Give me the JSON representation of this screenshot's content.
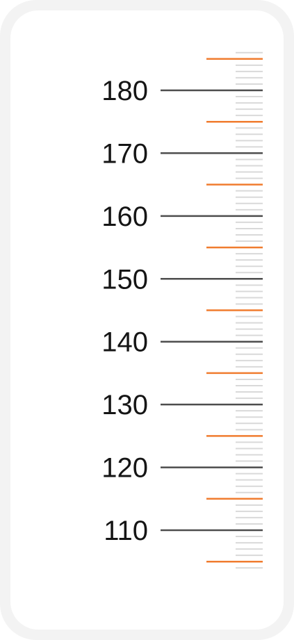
{
  "ruler": {
    "major_values": [
      180,
      170,
      160,
      150,
      140,
      130,
      120,
      110
    ],
    "major_labels": [
      "180",
      "170",
      "160",
      "150",
      "140",
      "130",
      "120",
      "110"
    ],
    "orange_values": [
      185,
      175,
      165,
      155,
      145,
      135,
      125,
      115,
      105
    ],
    "minor_step": 1,
    "range": [
      104,
      186
    ],
    "unit": "",
    "colors": {
      "frame": "#f3f3f3",
      "card": "#ffffff",
      "major_tick": "#4d4d4d",
      "orange_tick": "#f07c2f",
      "minor_tick": "#d9d9d9",
      "label": "#151515"
    }
  }
}
